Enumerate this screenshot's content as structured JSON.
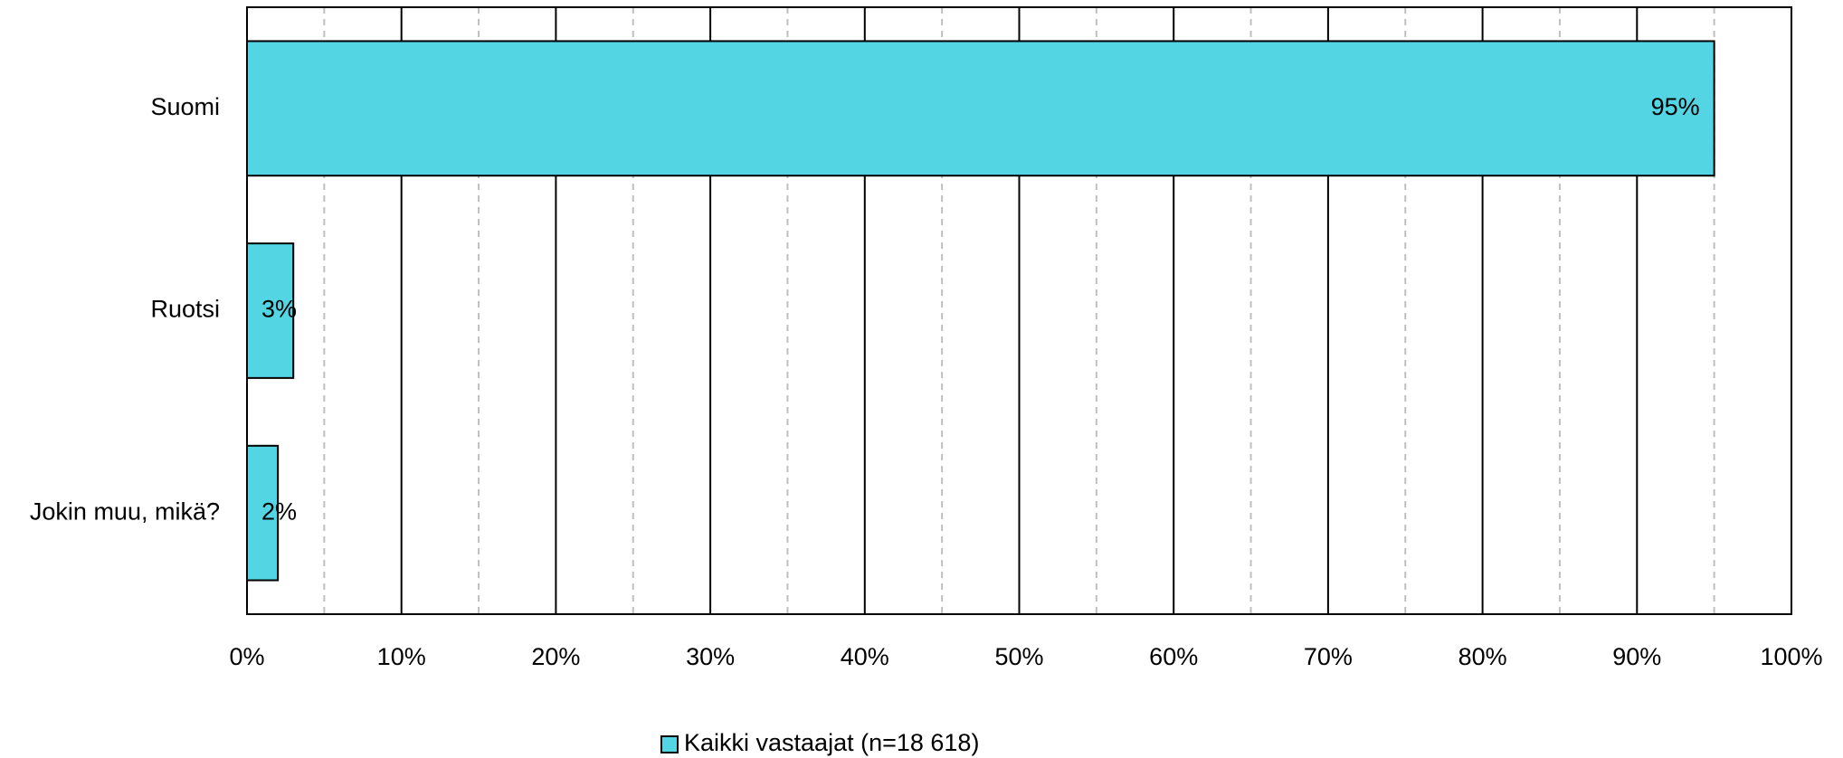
{
  "chart_data": {
    "type": "bar",
    "orientation": "horizontal",
    "categories": [
      "Suomi",
      "Ruotsi",
      "Jokin muu, mikä?"
    ],
    "series": [
      {
        "name": "Kaikki vastaajat (n=18 618)",
        "values": [
          95,
          3,
          2
        ],
        "color": "#53d5e3"
      }
    ],
    "data_labels": [
      "95%",
      "3%",
      "2%"
    ],
    "xlim": [
      0,
      100
    ],
    "xticks": [
      0,
      10,
      20,
      30,
      40,
      50,
      60,
      70,
      80,
      90,
      100
    ],
    "xtick_labels": [
      "0%",
      "10%",
      "20%",
      "30%",
      "40%",
      "50%",
      "60%",
      "70%",
      "80%",
      "90%",
      "100%"
    ],
    "minor_gridlines": [
      5,
      15,
      25,
      35,
      45,
      55,
      65,
      75,
      85,
      95
    ],
    "grid": true,
    "legend_position": "bottom"
  }
}
